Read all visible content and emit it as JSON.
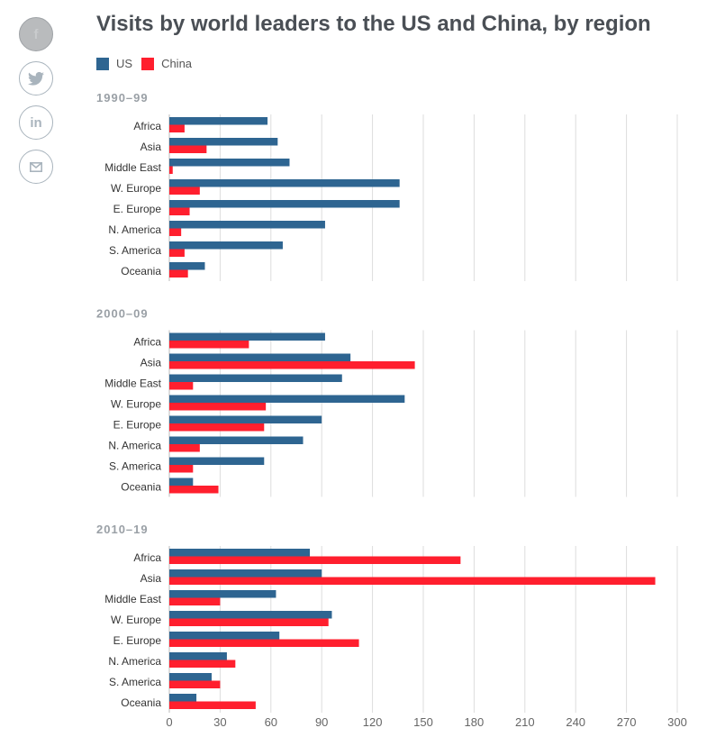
{
  "share": {
    "facebook": "f",
    "twitter": "twitter-icon",
    "linkedin": "in",
    "email": "email-icon"
  },
  "colors": {
    "US": "#2e6591",
    "China": "#ff1f2e"
  },
  "chart_data": {
    "type": "bar",
    "title": "Visits by world leaders to the US and China, by region",
    "legend": [
      "US",
      "China"
    ],
    "legend_position": "top-left",
    "xlim": [
      0,
      300
    ],
    "xticks": [
      "0",
      "30",
      "60",
      "90",
      "120",
      "150",
      "180",
      "210",
      "240",
      "270",
      "300"
    ],
    "grid": true,
    "categories": [
      "Africa",
      "Asia",
      "Middle East",
      "W. Europe",
      "E. Europe",
      "N. America",
      "S. America",
      "Oceania"
    ],
    "panels": [
      {
        "title": "1990–99",
        "series": [
          {
            "name": "US",
            "values": [
              58,
              64,
              71,
              136,
              136,
              92,
              67,
              21
            ]
          },
          {
            "name": "China",
            "values": [
              9,
              22,
              2,
              18,
              12,
              7,
              9,
              11
            ]
          }
        ]
      },
      {
        "title": "2000–09",
        "series": [
          {
            "name": "US",
            "values": [
              92,
              107,
              102,
              139,
              90,
              79,
              56,
              14
            ]
          },
          {
            "name": "China",
            "values": [
              47,
              145,
              14,
              57,
              56,
              18,
              14,
              29
            ]
          }
        ]
      },
      {
        "title": "2010–19",
        "series": [
          {
            "name": "US",
            "values": [
              83,
              90,
              63,
              96,
              65,
              34,
              25,
              16
            ]
          },
          {
            "name": "China",
            "values": [
              172,
              287,
              30,
              94,
              112,
              39,
              30,
              51
            ]
          }
        ]
      }
    ]
  }
}
